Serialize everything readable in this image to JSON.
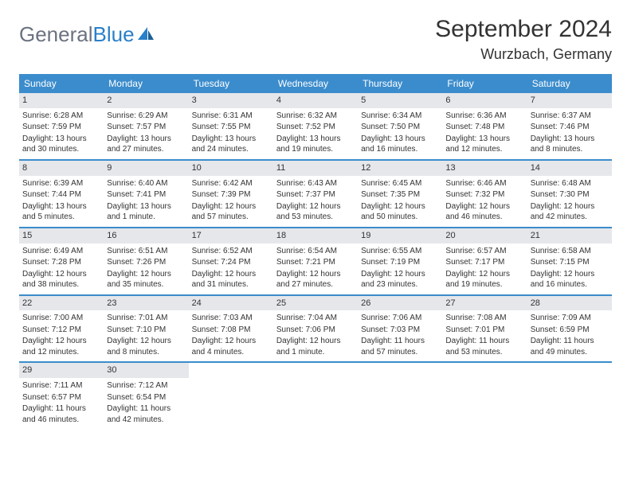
{
  "logo": {
    "gray": "General",
    "blue": "Blue"
  },
  "title": "September 2024",
  "location": "Wurzbach, Germany",
  "colors": {
    "header_bg": "#3b8ccc",
    "row_divider": "#3b8ccc",
    "daynum_bg": "#e5e7eb",
    "logo_gray": "#6b7280",
    "logo_blue": "#2a7fc9",
    "text": "#333333",
    "background": "#ffffff"
  },
  "weekdays": [
    "Sunday",
    "Monday",
    "Tuesday",
    "Wednesday",
    "Thursday",
    "Friday",
    "Saturday"
  ],
  "weeks": [
    [
      {
        "n": "1",
        "sr": "Sunrise: 6:28 AM",
        "ss": "Sunset: 7:59 PM",
        "dl": "Daylight: 13 hours and 30 minutes."
      },
      {
        "n": "2",
        "sr": "Sunrise: 6:29 AM",
        "ss": "Sunset: 7:57 PM",
        "dl": "Daylight: 13 hours and 27 minutes."
      },
      {
        "n": "3",
        "sr": "Sunrise: 6:31 AM",
        "ss": "Sunset: 7:55 PM",
        "dl": "Daylight: 13 hours and 24 minutes."
      },
      {
        "n": "4",
        "sr": "Sunrise: 6:32 AM",
        "ss": "Sunset: 7:52 PM",
        "dl": "Daylight: 13 hours and 19 minutes."
      },
      {
        "n": "5",
        "sr": "Sunrise: 6:34 AM",
        "ss": "Sunset: 7:50 PM",
        "dl": "Daylight: 13 hours and 16 minutes."
      },
      {
        "n": "6",
        "sr": "Sunrise: 6:36 AM",
        "ss": "Sunset: 7:48 PM",
        "dl": "Daylight: 13 hours and 12 minutes."
      },
      {
        "n": "7",
        "sr": "Sunrise: 6:37 AM",
        "ss": "Sunset: 7:46 PM",
        "dl": "Daylight: 13 hours and 8 minutes."
      }
    ],
    [
      {
        "n": "8",
        "sr": "Sunrise: 6:39 AM",
        "ss": "Sunset: 7:44 PM",
        "dl": "Daylight: 13 hours and 5 minutes."
      },
      {
        "n": "9",
        "sr": "Sunrise: 6:40 AM",
        "ss": "Sunset: 7:41 PM",
        "dl": "Daylight: 13 hours and 1 minute."
      },
      {
        "n": "10",
        "sr": "Sunrise: 6:42 AM",
        "ss": "Sunset: 7:39 PM",
        "dl": "Daylight: 12 hours and 57 minutes."
      },
      {
        "n": "11",
        "sr": "Sunrise: 6:43 AM",
        "ss": "Sunset: 7:37 PM",
        "dl": "Daylight: 12 hours and 53 minutes."
      },
      {
        "n": "12",
        "sr": "Sunrise: 6:45 AM",
        "ss": "Sunset: 7:35 PM",
        "dl": "Daylight: 12 hours and 50 minutes."
      },
      {
        "n": "13",
        "sr": "Sunrise: 6:46 AM",
        "ss": "Sunset: 7:32 PM",
        "dl": "Daylight: 12 hours and 46 minutes."
      },
      {
        "n": "14",
        "sr": "Sunrise: 6:48 AM",
        "ss": "Sunset: 7:30 PM",
        "dl": "Daylight: 12 hours and 42 minutes."
      }
    ],
    [
      {
        "n": "15",
        "sr": "Sunrise: 6:49 AM",
        "ss": "Sunset: 7:28 PM",
        "dl": "Daylight: 12 hours and 38 minutes."
      },
      {
        "n": "16",
        "sr": "Sunrise: 6:51 AM",
        "ss": "Sunset: 7:26 PM",
        "dl": "Daylight: 12 hours and 35 minutes."
      },
      {
        "n": "17",
        "sr": "Sunrise: 6:52 AM",
        "ss": "Sunset: 7:24 PM",
        "dl": "Daylight: 12 hours and 31 minutes."
      },
      {
        "n": "18",
        "sr": "Sunrise: 6:54 AM",
        "ss": "Sunset: 7:21 PM",
        "dl": "Daylight: 12 hours and 27 minutes."
      },
      {
        "n": "19",
        "sr": "Sunrise: 6:55 AM",
        "ss": "Sunset: 7:19 PM",
        "dl": "Daylight: 12 hours and 23 minutes."
      },
      {
        "n": "20",
        "sr": "Sunrise: 6:57 AM",
        "ss": "Sunset: 7:17 PM",
        "dl": "Daylight: 12 hours and 19 minutes."
      },
      {
        "n": "21",
        "sr": "Sunrise: 6:58 AM",
        "ss": "Sunset: 7:15 PM",
        "dl": "Daylight: 12 hours and 16 minutes."
      }
    ],
    [
      {
        "n": "22",
        "sr": "Sunrise: 7:00 AM",
        "ss": "Sunset: 7:12 PM",
        "dl": "Daylight: 12 hours and 12 minutes."
      },
      {
        "n": "23",
        "sr": "Sunrise: 7:01 AM",
        "ss": "Sunset: 7:10 PM",
        "dl": "Daylight: 12 hours and 8 minutes."
      },
      {
        "n": "24",
        "sr": "Sunrise: 7:03 AM",
        "ss": "Sunset: 7:08 PM",
        "dl": "Daylight: 12 hours and 4 minutes."
      },
      {
        "n": "25",
        "sr": "Sunrise: 7:04 AM",
        "ss": "Sunset: 7:06 PM",
        "dl": "Daylight: 12 hours and 1 minute."
      },
      {
        "n": "26",
        "sr": "Sunrise: 7:06 AM",
        "ss": "Sunset: 7:03 PM",
        "dl": "Daylight: 11 hours and 57 minutes."
      },
      {
        "n": "27",
        "sr": "Sunrise: 7:08 AM",
        "ss": "Sunset: 7:01 PM",
        "dl": "Daylight: 11 hours and 53 minutes."
      },
      {
        "n": "28",
        "sr": "Sunrise: 7:09 AM",
        "ss": "Sunset: 6:59 PM",
        "dl": "Daylight: 11 hours and 49 minutes."
      }
    ],
    [
      {
        "n": "29",
        "sr": "Sunrise: 7:11 AM",
        "ss": "Sunset: 6:57 PM",
        "dl": "Daylight: 11 hours and 46 minutes."
      },
      {
        "n": "30",
        "sr": "Sunrise: 7:12 AM",
        "ss": "Sunset: 6:54 PM",
        "dl": "Daylight: 11 hours and 42 minutes."
      },
      {
        "empty": true
      },
      {
        "empty": true
      },
      {
        "empty": true
      },
      {
        "empty": true
      },
      {
        "empty": true
      }
    ]
  ]
}
